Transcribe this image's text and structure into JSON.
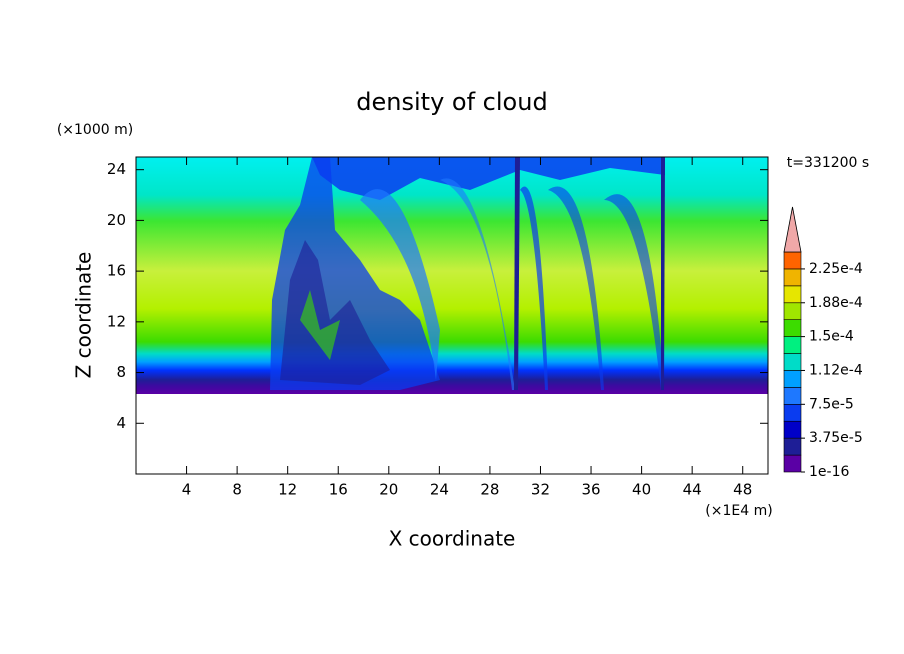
{
  "chart_data": {
    "type": "contour",
    "title": "density of cloud",
    "x_label": "X coordinate",
    "y_label": "Z coordinate",
    "x_unit": "(×1E4 m)",
    "y_unit": "(×1000 m)",
    "annotation": "t=331200 s",
    "xlim": [
      0,
      50
    ],
    "ylim": [
      0,
      25
    ],
    "xticks": [
      4,
      8,
      12,
      16,
      20,
      24,
      28,
      32,
      36,
      40,
      44,
      48
    ],
    "yticks": [
      4,
      8,
      12,
      16,
      20,
      24
    ],
    "colorbar": {
      "levels": [
        1e-16,
        1.875e-05,
        3.75e-05,
        5.625e-05,
        7.5e-05,
        9.375e-05,
        0.0001125,
        0.00013125,
        0.00015,
        0.00016875,
        0.0001875,
        0.00020625,
        0.000225,
        0.00024375
      ],
      "colors": [
        "#5a00a5",
        "#1e1e96",
        "#0000c8",
        "#0a3cf0",
        "#1e78ff",
        "#00a0ff",
        "#00dcc8",
        "#00f080",
        "#3cdc00",
        "#a0e600",
        "#e6e600",
        "#f0b400",
        "#ff6400"
      ],
      "extend_color": "#f0a8a8",
      "ticks": [
        {
          "value": 1e-16,
          "label": "1e-16"
        },
        {
          "value": 3.75e-05,
          "label": "3.75e-5"
        },
        {
          "value": 7.5e-05,
          "label": "7.5e-5"
        },
        {
          "value": 0.0001125,
          "label": "1.12e-4"
        },
        {
          "value": 0.00015,
          "label": "1.5e-4"
        },
        {
          "value": 0.0001875,
          "label": "1.88e-4"
        },
        {
          "value": 0.000225,
          "label": "2.25e-4"
        }
      ]
    }
  }
}
